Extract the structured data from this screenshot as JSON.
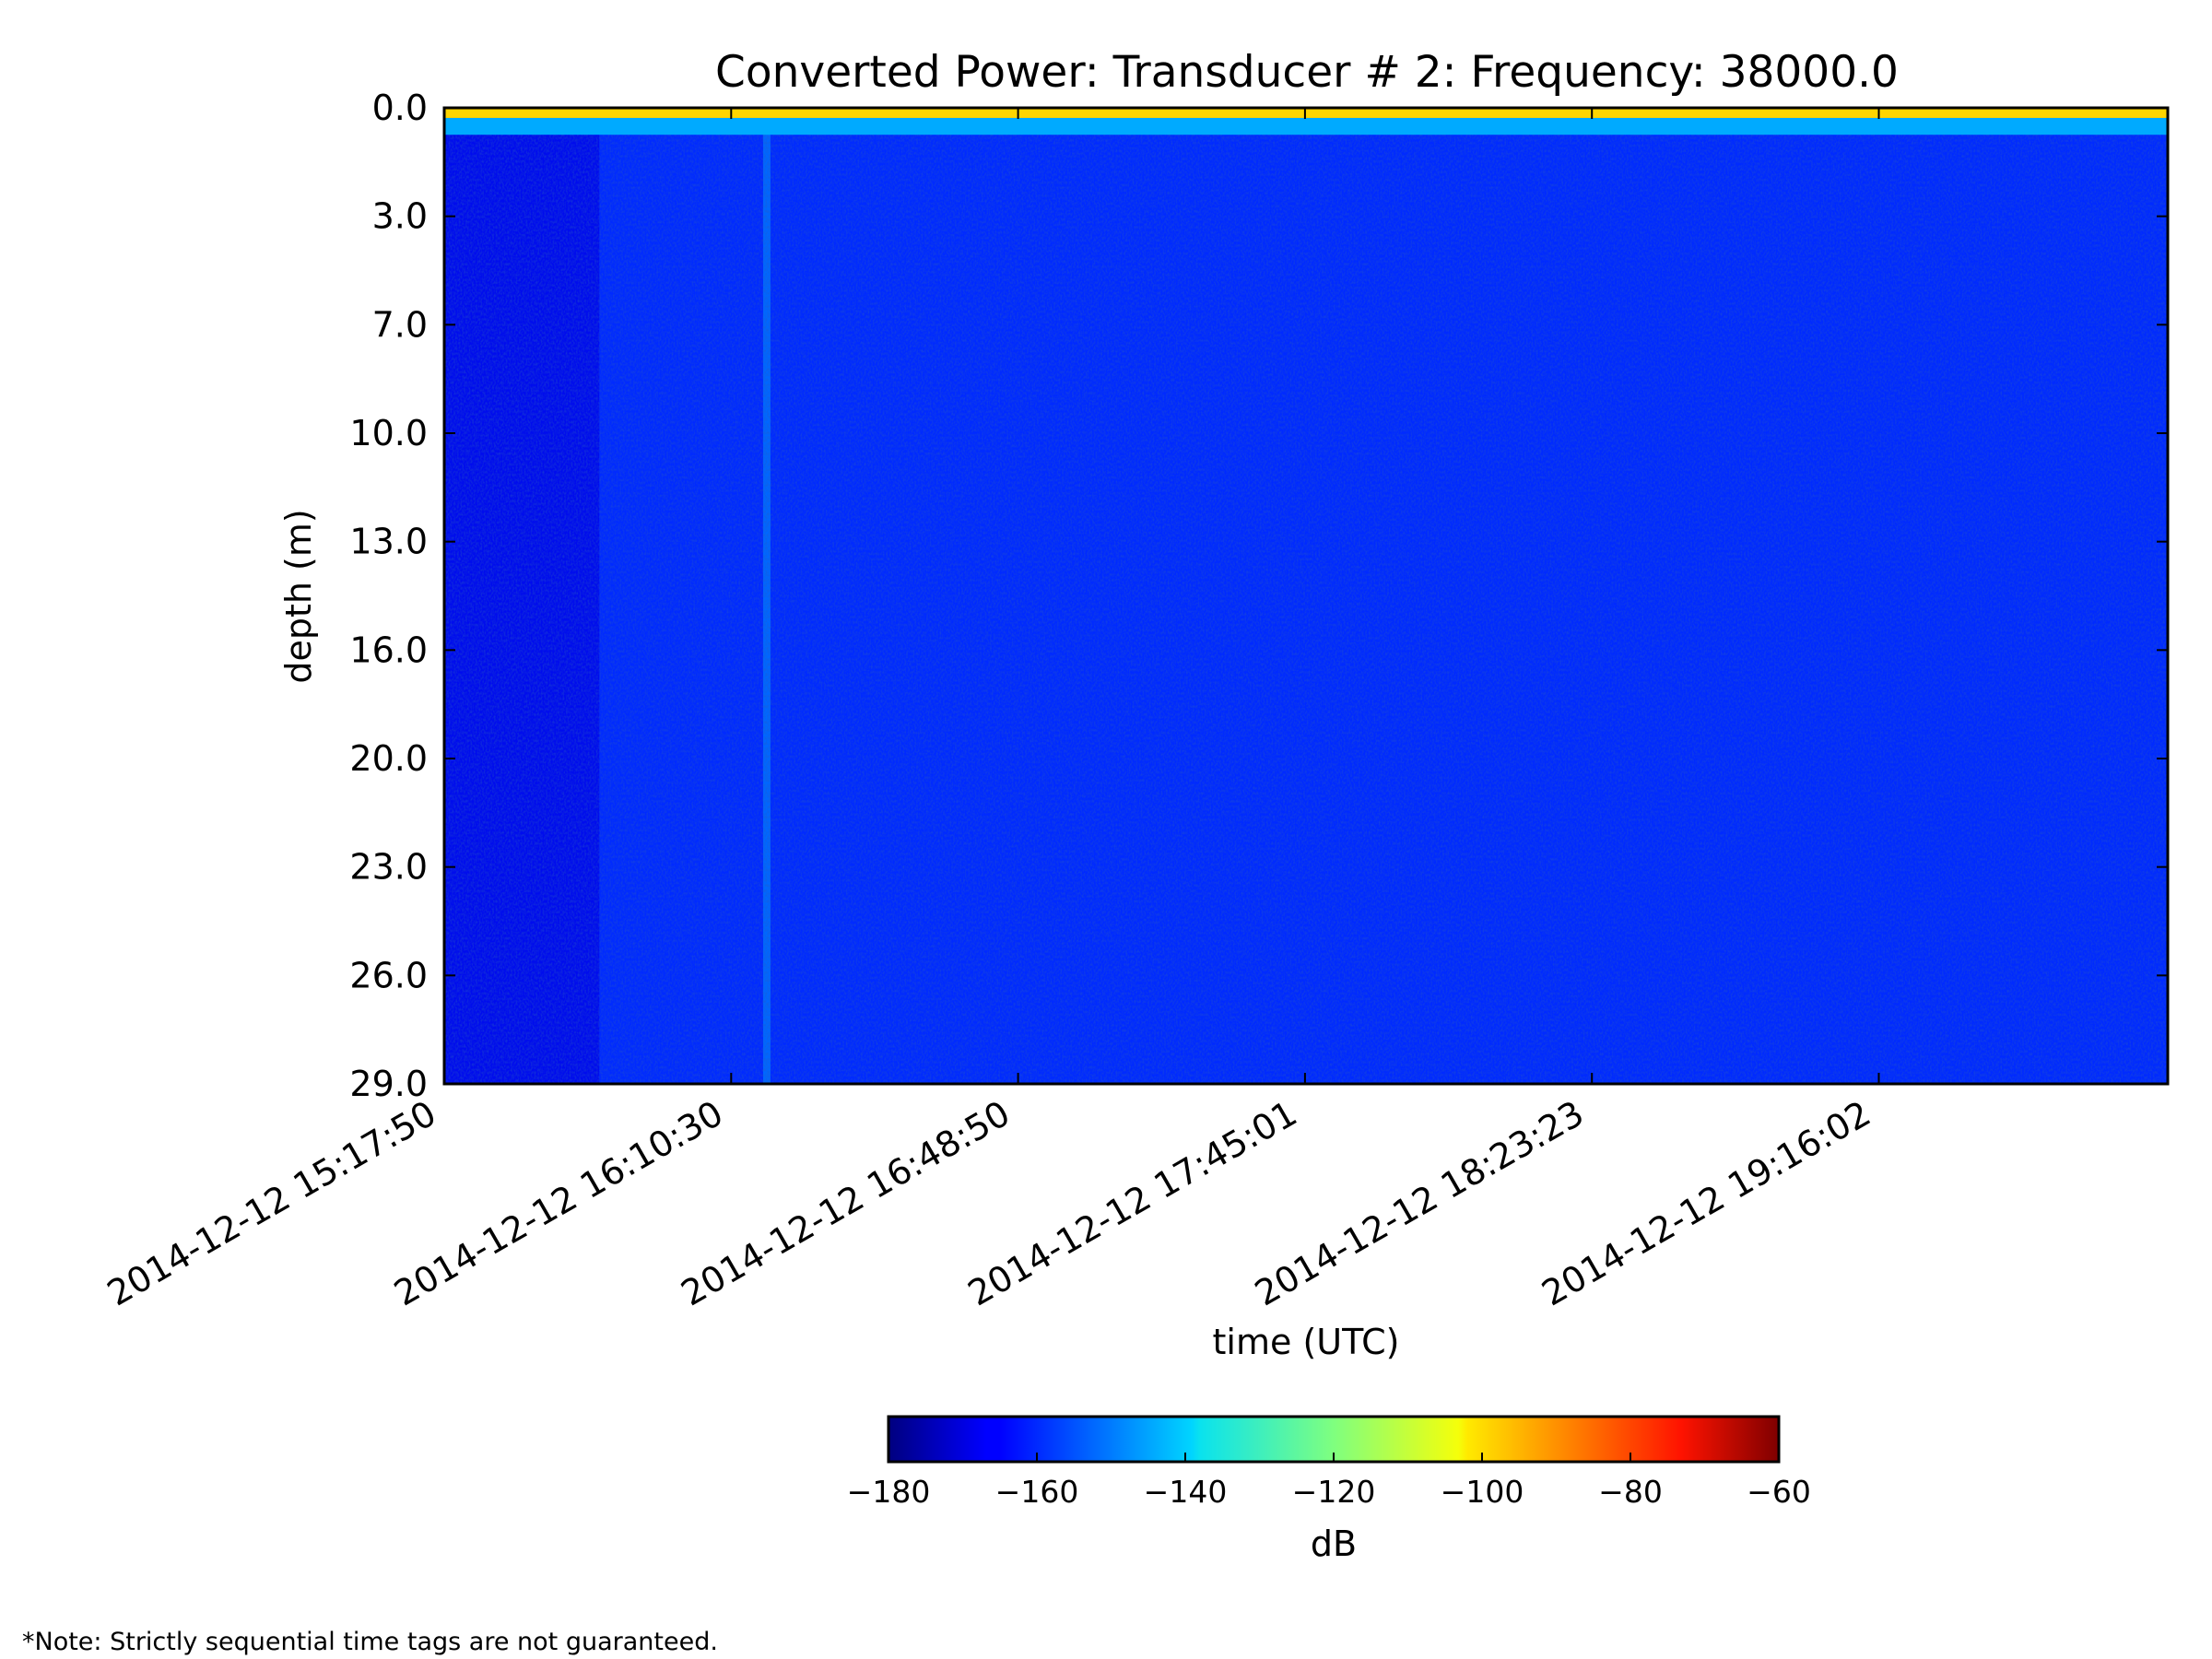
{
  "chart_data": {
    "type": "heatmap",
    "title": "Converted Power: Transducer # 2: Frequency: 38000.0",
    "xlabel": "time (UTC)",
    "ylabel": "depth (m)",
    "x_tick_labels": [
      "2014-12-12 15:17:50",
      "2014-12-12 16:10:30",
      "2014-12-12 16:48:50",
      "2014-12-12 17:45:01",
      "2014-12-12 18:23:23",
      "2014-12-12 19:16:02"
    ],
    "y_tick_labels": [
      "0.0",
      "3.0",
      "7.0",
      "10.0",
      "13.0",
      "16.0",
      "20.0",
      "23.0",
      "26.0",
      "29.0"
    ],
    "ylim": [
      0.0,
      29.0
    ],
    "y_inverted": true,
    "colorbar": {
      "label": "dB",
      "colormap": "jet",
      "vmin": -180,
      "vmax": -60,
      "tick_labels": [
        "−180",
        "−160",
        "−140",
        "−120",
        "−100",
        "−80",
        "−60"
      ],
      "tick_values": [
        -180,
        -160,
        -140,
        -120,
        -100,
        -80,
        -60
      ]
    },
    "field_summary": {
      "background_db": -160,
      "surface_band": {
        "depth_range": [
          0.0,
          0.3
        ],
        "db": -100
      },
      "near_surface_band": {
        "depth_range": [
          0.3,
          0.8
        ],
        "db": -145
      },
      "early_darker_region_db": -168,
      "vertical_streak_db": -148
    }
  },
  "note": "*Note: Strictly sequential time tags are not guaranteed."
}
